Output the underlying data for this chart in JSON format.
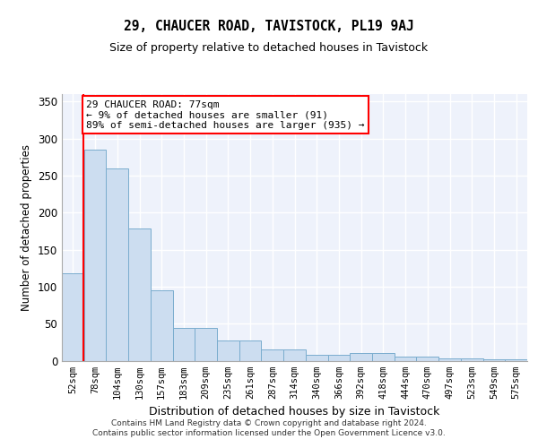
{
  "title1": "29, CHAUCER ROAD, TAVISTOCK, PL19 9AJ",
  "title2": "Size of property relative to detached houses in Tavistock",
  "xlabel": "Distribution of detached houses by size in Tavistock",
  "ylabel": "Number of detached properties",
  "bin_labels": [
    "52sqm",
    "78sqm",
    "104sqm",
    "130sqm",
    "157sqm",
    "183sqm",
    "209sqm",
    "235sqm",
    "261sqm",
    "287sqm",
    "314sqm",
    "340sqm",
    "366sqm",
    "392sqm",
    "418sqm",
    "444sqm",
    "470sqm",
    "497sqm",
    "523sqm",
    "549sqm",
    "575sqm"
  ],
  "bar_values": [
    118,
    285,
    260,
    178,
    95,
    44,
    44,
    27,
    27,
    15,
    15,
    8,
    8,
    10,
    10,
    5,
    5,
    3,
    3,
    2,
    2
  ],
  "bar_color": "#ccddf0",
  "bar_edge_color": "#7aadce",
  "annotation_box_text": "29 CHAUCER ROAD: 77sqm\n← 9% of detached houses are smaller (91)\n89% of semi-detached houses are larger (935) →",
  "annotation_box_color": "white",
  "annotation_box_edge_color": "red",
  "vline_color": "red",
  "footer_text": "Contains HM Land Registry data © Crown copyright and database right 2024.\nContains public sector information licensed under the Open Government Licence v3.0.",
  "ylim": [
    0,
    360
  ],
  "yticks": [
    0,
    50,
    100,
    150,
    200,
    250,
    300,
    350
  ],
  "bg_color": "#eef2fb",
  "grid_color": "#ffffff"
}
